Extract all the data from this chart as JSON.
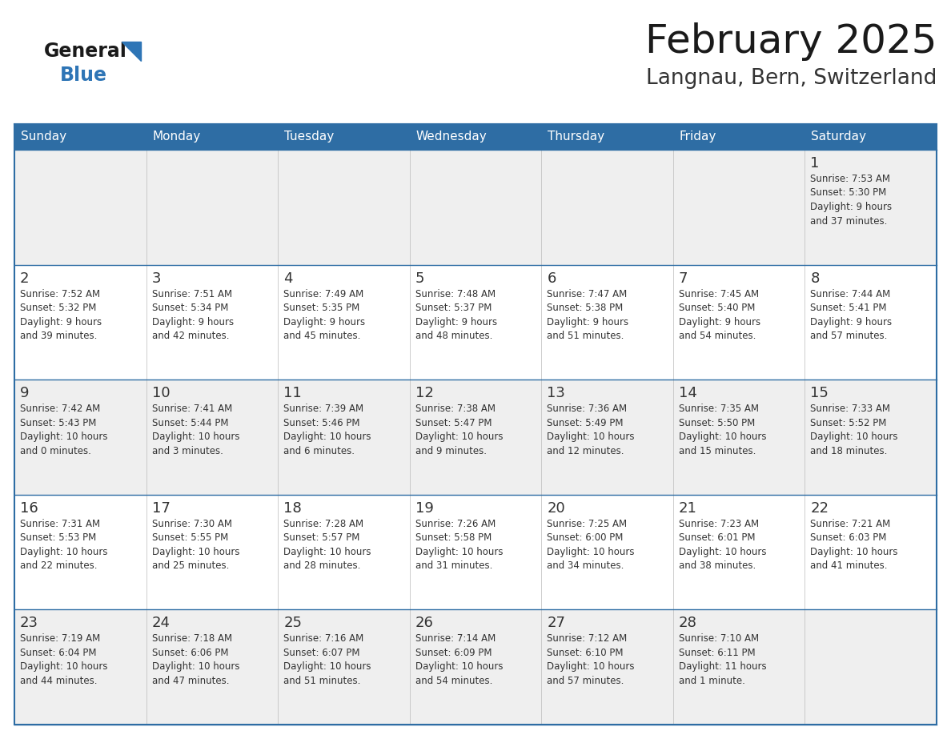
{
  "title": "February 2025",
  "subtitle": "Langnau, Bern, Switzerland",
  "days_of_week": [
    "Sunday",
    "Monday",
    "Tuesday",
    "Wednesday",
    "Thursday",
    "Friday",
    "Saturday"
  ],
  "header_bg": "#2E6DA4",
  "header_text": "#FFFFFF",
  "cell_bg_light": "#EFEFEF",
  "cell_bg_white": "#FFFFFF",
  "day_number_color": "#333333",
  "info_text_color": "#333333",
  "row_border_color": "#2E6DA4",
  "col_border_color": "#CCCCCC",
  "title_color": "#1a1a1a",
  "subtitle_color": "#333333",
  "logo_general_color": "#1a1a1a",
  "logo_blue_color": "#2E75B6",
  "calendar_data": [
    [
      null,
      null,
      null,
      null,
      null,
      null,
      {
        "day": 1,
        "sunrise": "7:53 AM",
        "sunset": "5:30 PM",
        "daylight": "9 hours\nand 37 minutes."
      }
    ],
    [
      {
        "day": 2,
        "sunrise": "7:52 AM",
        "sunset": "5:32 PM",
        "daylight": "9 hours\nand 39 minutes."
      },
      {
        "day": 3,
        "sunrise": "7:51 AM",
        "sunset": "5:34 PM",
        "daylight": "9 hours\nand 42 minutes."
      },
      {
        "day": 4,
        "sunrise": "7:49 AM",
        "sunset": "5:35 PM",
        "daylight": "9 hours\nand 45 minutes."
      },
      {
        "day": 5,
        "sunrise": "7:48 AM",
        "sunset": "5:37 PM",
        "daylight": "9 hours\nand 48 minutes."
      },
      {
        "day": 6,
        "sunrise": "7:47 AM",
        "sunset": "5:38 PM",
        "daylight": "9 hours\nand 51 minutes."
      },
      {
        "day": 7,
        "sunrise": "7:45 AM",
        "sunset": "5:40 PM",
        "daylight": "9 hours\nand 54 minutes."
      },
      {
        "day": 8,
        "sunrise": "7:44 AM",
        "sunset": "5:41 PM",
        "daylight": "9 hours\nand 57 minutes."
      }
    ],
    [
      {
        "day": 9,
        "sunrise": "7:42 AM",
        "sunset": "5:43 PM",
        "daylight": "10 hours\nand 0 minutes."
      },
      {
        "day": 10,
        "sunrise": "7:41 AM",
        "sunset": "5:44 PM",
        "daylight": "10 hours\nand 3 minutes."
      },
      {
        "day": 11,
        "sunrise": "7:39 AM",
        "sunset": "5:46 PM",
        "daylight": "10 hours\nand 6 minutes."
      },
      {
        "day": 12,
        "sunrise": "7:38 AM",
        "sunset": "5:47 PM",
        "daylight": "10 hours\nand 9 minutes."
      },
      {
        "day": 13,
        "sunrise": "7:36 AM",
        "sunset": "5:49 PM",
        "daylight": "10 hours\nand 12 minutes."
      },
      {
        "day": 14,
        "sunrise": "7:35 AM",
        "sunset": "5:50 PM",
        "daylight": "10 hours\nand 15 minutes."
      },
      {
        "day": 15,
        "sunrise": "7:33 AM",
        "sunset": "5:52 PM",
        "daylight": "10 hours\nand 18 minutes."
      }
    ],
    [
      {
        "day": 16,
        "sunrise": "7:31 AM",
        "sunset": "5:53 PM",
        "daylight": "10 hours\nand 22 minutes."
      },
      {
        "day": 17,
        "sunrise": "7:30 AM",
        "sunset": "5:55 PM",
        "daylight": "10 hours\nand 25 minutes."
      },
      {
        "day": 18,
        "sunrise": "7:28 AM",
        "sunset": "5:57 PM",
        "daylight": "10 hours\nand 28 minutes."
      },
      {
        "day": 19,
        "sunrise": "7:26 AM",
        "sunset": "5:58 PM",
        "daylight": "10 hours\nand 31 minutes."
      },
      {
        "day": 20,
        "sunrise": "7:25 AM",
        "sunset": "6:00 PM",
        "daylight": "10 hours\nand 34 minutes."
      },
      {
        "day": 21,
        "sunrise": "7:23 AM",
        "sunset": "6:01 PM",
        "daylight": "10 hours\nand 38 minutes."
      },
      {
        "day": 22,
        "sunrise": "7:21 AM",
        "sunset": "6:03 PM",
        "daylight": "10 hours\nand 41 minutes."
      }
    ],
    [
      {
        "day": 23,
        "sunrise": "7:19 AM",
        "sunset": "6:04 PM",
        "daylight": "10 hours\nand 44 minutes."
      },
      {
        "day": 24,
        "sunrise": "7:18 AM",
        "sunset": "6:06 PM",
        "daylight": "10 hours\nand 47 minutes."
      },
      {
        "day": 25,
        "sunrise": "7:16 AM",
        "sunset": "6:07 PM",
        "daylight": "10 hours\nand 51 minutes."
      },
      {
        "day": 26,
        "sunrise": "7:14 AM",
        "sunset": "6:09 PM",
        "daylight": "10 hours\nand 54 minutes."
      },
      {
        "day": 27,
        "sunrise": "7:12 AM",
        "sunset": "6:10 PM",
        "daylight": "10 hours\nand 57 minutes."
      },
      {
        "day": 28,
        "sunrise": "7:10 AM",
        "sunset": "6:11 PM",
        "daylight": "11 hours\nand 1 minute."
      },
      null
    ]
  ]
}
